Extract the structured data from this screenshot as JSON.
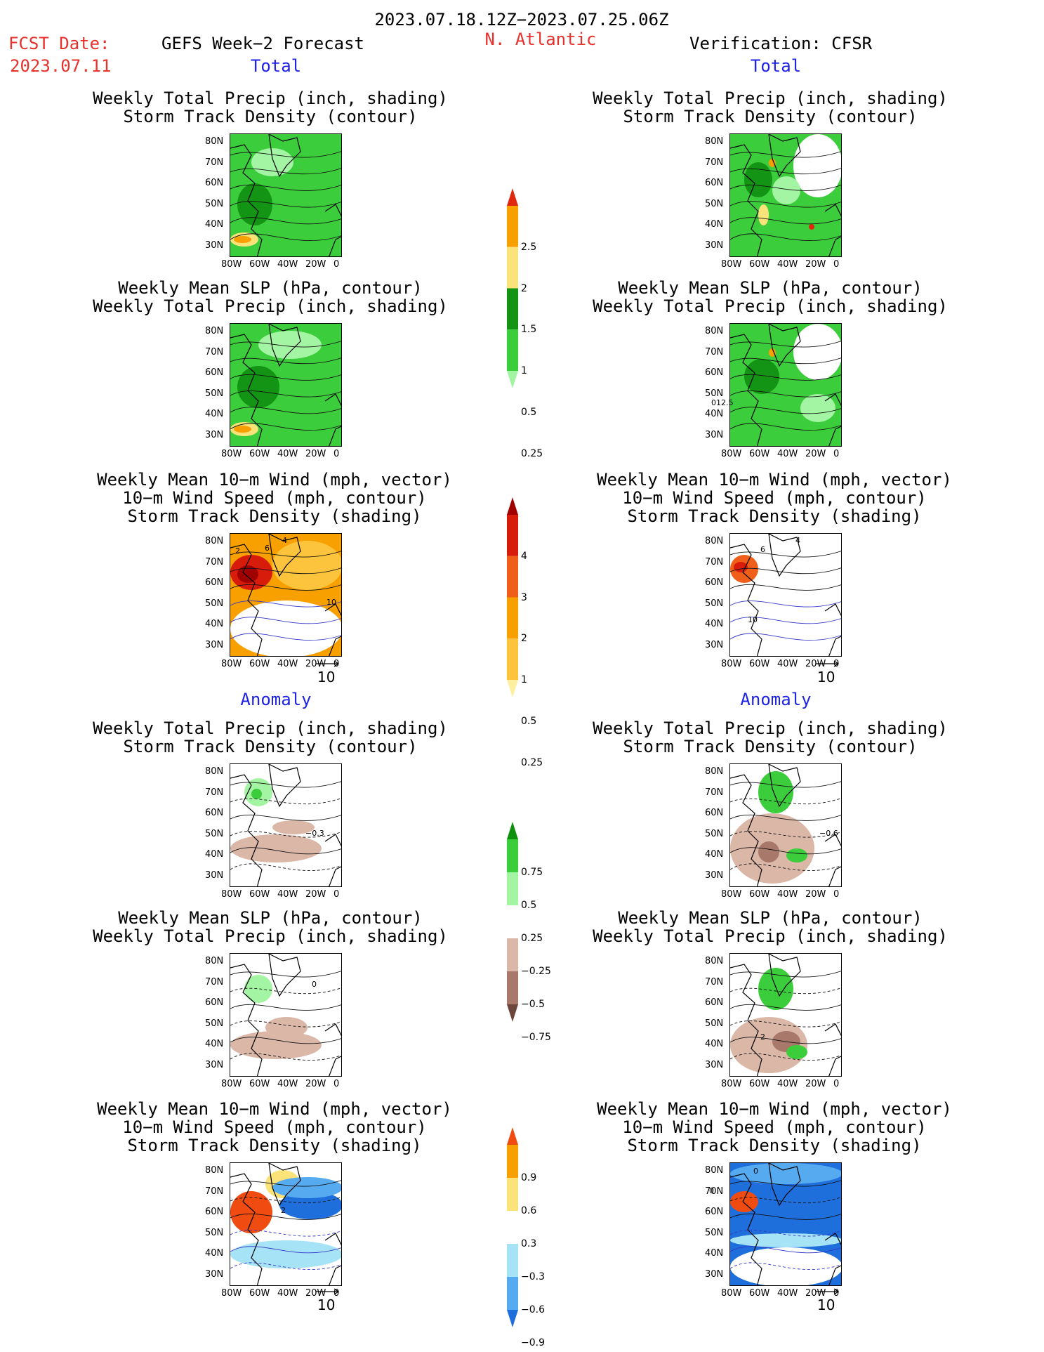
{
  "header": {
    "period": "2023.07.18.12Z−2023.07.25.06Z",
    "fcst_label": "FCST Date:",
    "fcst_date": "2023.07.11",
    "left_title": "GEFS Week−2 Forecast",
    "region": "N. Atlantic",
    "right_title": "Verification: CFSR"
  },
  "sections": {
    "total": "Total",
    "anomaly": "Anomaly"
  },
  "panel_titles": {
    "precip_track": [
      "Weekly Total Precip (inch, shading)",
      "Storm Track Density (contour)"
    ],
    "slp_precip": [
      "Weekly Mean SLP (hPa, contour)",
      "Weekly Total Precip (inch, shading)"
    ],
    "wind_track": [
      "Weekly Mean 10−m Wind (mph, vector)",
      "10−m Wind Speed (mph, contour)",
      "Storm Track Density (shading)"
    ]
  },
  "axes": {
    "lat_ticks": [
      "80N",
      "70N",
      "60N",
      "50N",
      "40N",
      "30N"
    ],
    "lon_ticks": [
      "80W",
      "60W",
      "40W",
      "20W",
      "0"
    ]
  },
  "vector_scale": "10",
  "colorbars": {
    "precip_total": {
      "labels": [
        "2.5",
        "2",
        "1.5",
        "1",
        "0.5",
        "0.25"
      ],
      "colors": [
        "#e02810",
        "#f7a000",
        "#fbe37a",
        "#149414",
        "#3ccd3c",
        "#a3f5a3"
      ]
    },
    "track_total": {
      "labels": [
        "4",
        "3",
        "2",
        "1",
        "0.5",
        "0.25"
      ],
      "colors": [
        "#a00000",
        "#d81c0c",
        "#ef5f1a",
        "#f7a000",
        "#fbc43c",
        "#fcf0a0"
      ]
    },
    "precip_anom": {
      "labels": [
        "0.75",
        "0.5",
        "0.25",
        "−0.25",
        "−0.5",
        "−0.75"
      ],
      "colors": [
        "#0e8f0e",
        "#3ccd3c",
        "#a3f5a3",
        "#ffffff",
        "#dbb7a7",
        "#a8786a",
        "#6d463b"
      ]
    },
    "track_anom": {
      "labels": [
        "0.9",
        "0.6",
        "0.3",
        "−0.3",
        "−0.6",
        "−0.9"
      ],
      "colors": [
        "#f04b10",
        "#f7a000",
        "#fbe37a",
        "#ffffff",
        "#a6e3f7",
        "#56aaf0",
        "#1e6fdc"
      ]
    }
  },
  "contour_labels": {
    "anom_left_precip": "−0.3",
    "anom_right_precip": "−0.6",
    "total_right_slp": "012.5",
    "anom_left_slp": "0",
    "anom_right_slp": "2",
    "wind_left_a": "2",
    "wind_left_b": "6",
    "wind_left_c": "4",
    "wind_left_d": "10",
    "wind_right_a": "6",
    "wind_right_b": "4",
    "wind_right_c": "10",
    "wind_anom_left": "2",
    "wind_anom_right_a": "0",
    "wind_anom_right_b": "0"
  }
}
